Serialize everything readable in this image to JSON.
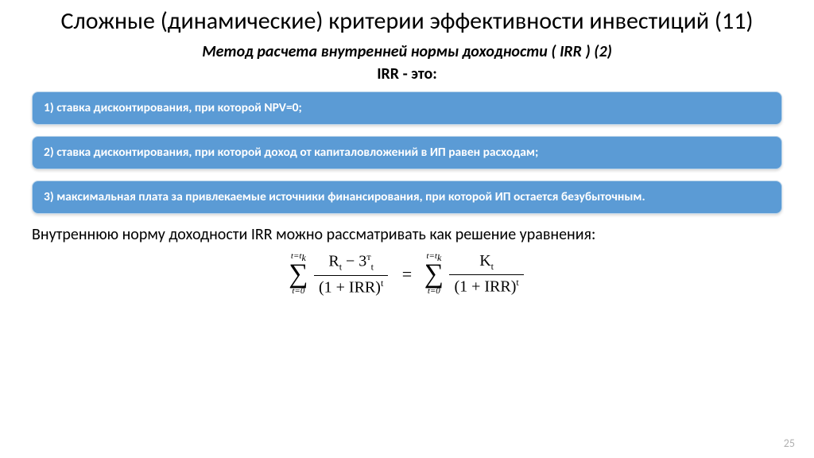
{
  "title": "Сложные (динамические) критерии эффективности инвестиций (11)",
  "subtitle": "Метод расчета внутренней нормы доходности ( IRR ) (2)",
  "subhead": "IRR - это:",
  "boxes": [
    "1) ставка дисконтирования, при которой NPV=0;",
    "2) ставка дисконтирования, при которой доход от капиталовложений в ИП равен расходам;",
    "3) максимальная плата за привлекаемые источники финансирования, при которой ИП остается безубыточным."
  ],
  "body": "Внутреннюю норму доходности IRR можно рассматривать как решение уравнения:",
  "formula": {
    "left_upper": "t=t",
    "left_upper_sub": "k",
    "left_lower": "t=0",
    "left_num_a": "R",
    "left_num_a_sub": "t",
    "left_num_op": " − 3",
    "left_num_b_sub": "t",
    "left_num_b_sup": "т",
    "left_den_base": "(1 + IRR)",
    "left_den_exp": "t",
    "eq": "=",
    "right_upper": "t=t",
    "right_upper_sub": "k",
    "right_lower": "t=0",
    "right_num": "K",
    "right_num_sub": "t",
    "right_den_base": "(1 + IRR)",
    "right_den_exp": "t"
  },
  "page_number": "25",
  "colors": {
    "box_bg": "#5b9bd5",
    "box_border": "#bcd5ea",
    "box_text": "#ffffff",
    "title_color": "#000000",
    "pagenum_color": "#b0b0b0"
  }
}
